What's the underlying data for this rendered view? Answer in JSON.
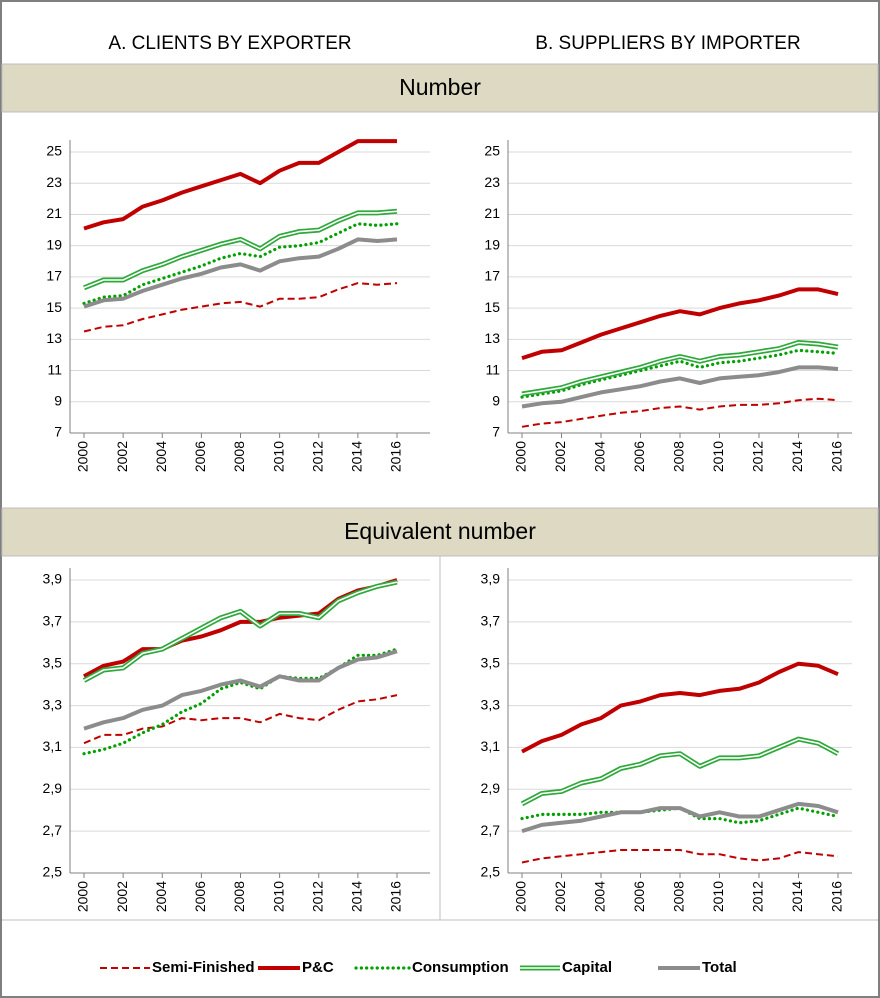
{
  "columns": [
    "A. CLIENTS BY EXPORTER",
    "B. SUPPLIERS BY IMPORTER"
  ],
  "rows": [
    "Number",
    "Equivalent number"
  ],
  "legend": [
    {
      "name": "Semi-Finished",
      "color": "#c00000",
      "style": "dashed"
    },
    {
      "name": "P&C",
      "color": "#c00000",
      "style": "thick"
    },
    {
      "name": "Consumption",
      "color": "#00a000",
      "style": "dotted"
    },
    {
      "name": "Capital",
      "color": "#2ea83a",
      "style": "double"
    },
    {
      "name": "Total",
      "color": "#8c8c8c",
      "style": "thick"
    }
  ],
  "chart_data": [
    {
      "type": "line",
      "x": [
        2000,
        2001,
        2002,
        2003,
        2004,
        2005,
        2006,
        2007,
        2008,
        2009,
        2010,
        2011,
        2012,
        2013,
        2014,
        2015,
        2016
      ],
      "xlim": [
        2000,
        2016
      ],
      "xticks": [
        2000,
        2002,
        2004,
        2006,
        2008,
        2010,
        2012,
        2014,
        2016
      ],
      "ylim": [
        7,
        25
      ],
      "yticks": [
        7,
        9,
        11,
        13,
        15,
        17,
        19,
        21,
        23,
        25
      ],
      "grid": true,
      "series": [
        {
          "values": [
            13.5,
            13.8,
            13.9,
            14.3,
            14.6,
            14.9,
            15.1,
            15.3,
            15.4,
            15.1,
            15.6,
            15.6,
            15.7,
            16.2,
            16.6,
            16.5,
            16.6
          ]
        },
        {
          "values": [
            20.1,
            20.5,
            20.7,
            21.5,
            21.9,
            22.4,
            22.8,
            23.2,
            23.6,
            23.0,
            23.8,
            24.3,
            24.3,
            25.0,
            25.7,
            25.7,
            25.7
          ]
        },
        {
          "values": [
            15.3,
            15.7,
            15.8,
            16.5,
            16.9,
            17.3,
            17.7,
            18.2,
            18.5,
            18.3,
            18.9,
            19.0,
            19.2,
            19.8,
            20.4,
            20.3,
            20.4
          ]
        },
        {
          "values": [
            16.3,
            16.8,
            16.8,
            17.4,
            17.8,
            18.3,
            18.7,
            19.1,
            19.4,
            18.8,
            19.6,
            19.9,
            20.0,
            20.6,
            21.1,
            21.1,
            21.2
          ]
        },
        {
          "values": [
            15.1,
            15.5,
            15.6,
            16.1,
            16.5,
            16.9,
            17.2,
            17.6,
            17.8,
            17.4,
            18.0,
            18.2,
            18.3,
            18.8,
            19.4,
            19.3,
            19.4
          ]
        }
      ]
    },
    {
      "type": "line",
      "x": [
        2000,
        2001,
        2002,
        2003,
        2004,
        2005,
        2006,
        2007,
        2008,
        2009,
        2010,
        2011,
        2012,
        2013,
        2014,
        2015,
        2016
      ],
      "xlim": [
        2000,
        2016
      ],
      "xticks": [
        2000,
        2002,
        2004,
        2006,
        2008,
        2010,
        2012,
        2014,
        2016
      ],
      "ylim": [
        7,
        25
      ],
      "yticks": [
        7,
        9,
        11,
        13,
        15,
        17,
        19,
        21,
        23,
        25
      ],
      "grid": true,
      "series": [
        {
          "values": [
            7.4,
            7.6,
            7.7,
            7.9,
            8.1,
            8.3,
            8.4,
            8.6,
            8.7,
            8.5,
            8.7,
            8.8,
            8.8,
            8.9,
            9.1,
            9.2,
            9.1
          ]
        },
        {
          "values": [
            11.8,
            12.2,
            12.3,
            12.8,
            13.3,
            13.7,
            14.1,
            14.5,
            14.8,
            14.6,
            15.0,
            15.3,
            15.5,
            15.8,
            16.2,
            16.2,
            15.9
          ]
        },
        {
          "values": [
            9.3,
            9.5,
            9.7,
            10.1,
            10.4,
            10.7,
            11.0,
            11.3,
            11.6,
            11.2,
            11.5,
            11.6,
            11.8,
            12.0,
            12.3,
            12.2,
            12.1
          ]
        },
        {
          "values": [
            9.5,
            9.7,
            9.9,
            10.3,
            10.6,
            10.9,
            11.2,
            11.6,
            11.9,
            11.6,
            11.9,
            12.0,
            12.2,
            12.4,
            12.8,
            12.7,
            12.5
          ]
        },
        {
          "values": [
            8.7,
            8.9,
            9.0,
            9.3,
            9.6,
            9.8,
            10.0,
            10.3,
            10.5,
            10.2,
            10.5,
            10.6,
            10.7,
            10.9,
            11.2,
            11.2,
            11.1
          ]
        }
      ]
    },
    {
      "type": "line",
      "x": [
        2000,
        2001,
        2002,
        2003,
        2004,
        2005,
        2006,
        2007,
        2008,
        2009,
        2010,
        2011,
        2012,
        2013,
        2014,
        2015,
        2016
      ],
      "xlim": [
        2000,
        2016
      ],
      "xticks": [
        2000,
        2002,
        2004,
        2006,
        2008,
        2010,
        2012,
        2014,
        2016
      ],
      "ylim": [
        2.5,
        3.9
      ],
      "yticks": [
        {
          "value": 2.5,
          "label": "2,5"
        },
        {
          "value": 2.7,
          "label": "2,7"
        },
        {
          "value": 2.9,
          "label": "2,9"
        },
        {
          "value": 3.1,
          "label": "3,1"
        },
        {
          "value": 3.3,
          "label": "3,3"
        },
        {
          "value": 3.5,
          "label": "3,5"
        },
        {
          "value": 3.7,
          "label": "3,7"
        },
        {
          "value": 3.9,
          "label": "3,9"
        }
      ],
      "grid": true,
      "series": [
        {
          "values": [
            3.12,
            3.16,
            3.16,
            3.19,
            3.2,
            3.24,
            3.23,
            3.24,
            3.24,
            3.22,
            3.26,
            3.24,
            3.23,
            3.28,
            3.32,
            3.33,
            3.35
          ]
        },
        {
          "values": [
            3.44,
            3.49,
            3.51,
            3.57,
            3.57,
            3.61,
            3.63,
            3.66,
            3.7,
            3.7,
            3.72,
            3.73,
            3.74,
            3.81,
            3.85,
            3.87,
            3.9
          ]
        },
        {
          "values": [
            3.07,
            3.09,
            3.12,
            3.17,
            3.21,
            3.27,
            3.31,
            3.38,
            3.41,
            3.38,
            3.44,
            3.43,
            3.43,
            3.48,
            3.54,
            3.54,
            3.57
          ]
        },
        {
          "values": [
            3.42,
            3.47,
            3.48,
            3.55,
            3.57,
            3.62,
            3.67,
            3.72,
            3.75,
            3.68,
            3.74,
            3.74,
            3.72,
            3.8,
            3.84,
            3.87,
            3.89
          ]
        },
        {
          "values": [
            3.19,
            3.22,
            3.24,
            3.28,
            3.3,
            3.35,
            3.37,
            3.4,
            3.42,
            3.39,
            3.44,
            3.42,
            3.42,
            3.48,
            3.52,
            3.53,
            3.56
          ]
        }
      ]
    },
    {
      "type": "line",
      "x": [
        2000,
        2001,
        2002,
        2003,
        2004,
        2005,
        2006,
        2007,
        2008,
        2009,
        2010,
        2011,
        2012,
        2013,
        2014,
        2015,
        2016
      ],
      "xlim": [
        2000,
        2016
      ],
      "xticks": [
        2000,
        2002,
        2004,
        2006,
        2008,
        2010,
        2012,
        2014,
        2016
      ],
      "ylim": [
        2.5,
        3.9
      ],
      "yticks": [
        {
          "value": 2.5,
          "label": "2,5"
        },
        {
          "value": 2.7,
          "label": "2,7"
        },
        {
          "value": 2.9,
          "label": "2,9"
        },
        {
          "value": 3.1,
          "label": "3,1"
        },
        {
          "value": 3.3,
          "label": "3,3"
        },
        {
          "value": 3.5,
          "label": "3,5"
        },
        {
          "value": 3.7,
          "label": "3,7"
        },
        {
          "value": 3.9,
          "label": "3,9"
        }
      ],
      "grid": true,
      "series": [
        {
          "values": [
            2.55,
            2.57,
            2.58,
            2.59,
            2.6,
            2.61,
            2.61,
            2.61,
            2.61,
            2.59,
            2.59,
            2.57,
            2.56,
            2.57,
            2.6,
            2.59,
            2.58
          ]
        },
        {
          "values": [
            3.08,
            3.13,
            3.16,
            3.21,
            3.24,
            3.3,
            3.32,
            3.35,
            3.36,
            3.35,
            3.37,
            3.38,
            3.41,
            3.46,
            3.5,
            3.49,
            3.45
          ]
        },
        {
          "values": [
            2.76,
            2.78,
            2.78,
            2.78,
            2.79,
            2.79,
            2.79,
            2.8,
            2.81,
            2.76,
            2.76,
            2.74,
            2.75,
            2.78,
            2.81,
            2.79,
            2.77
          ]
        },
        {
          "values": [
            2.83,
            2.88,
            2.89,
            2.93,
            2.95,
            3.0,
            3.02,
            3.06,
            3.07,
            3.01,
            3.05,
            3.05,
            3.06,
            3.1,
            3.14,
            3.12,
            3.07
          ]
        },
        {
          "values": [
            2.7,
            2.73,
            2.74,
            2.75,
            2.77,
            2.79,
            2.79,
            2.81,
            2.81,
            2.77,
            2.79,
            2.77,
            2.77,
            2.8,
            2.83,
            2.82,
            2.79
          ]
        }
      ]
    }
  ]
}
